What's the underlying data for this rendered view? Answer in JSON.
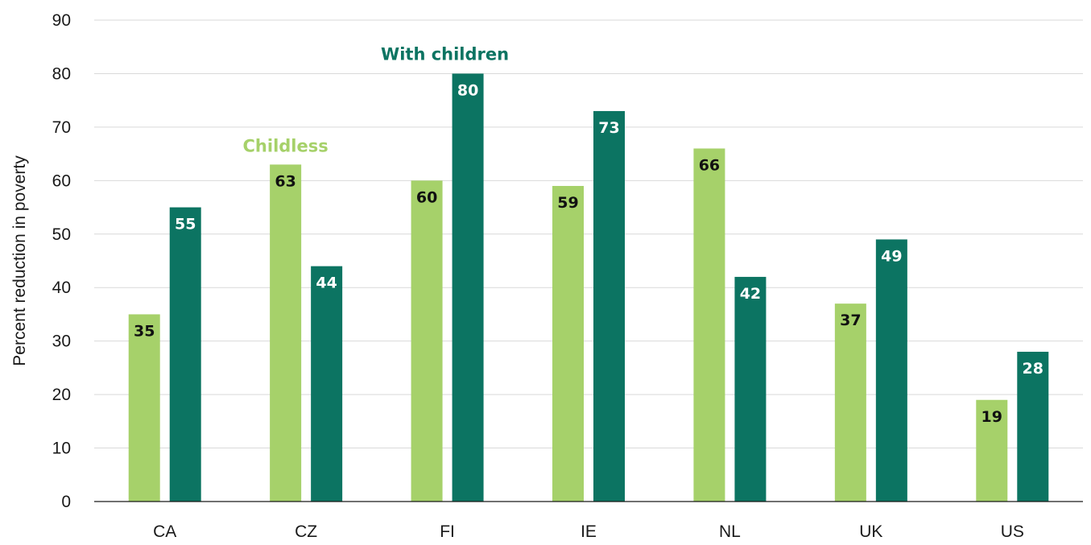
{
  "chart_data": {
    "type": "bar",
    "categories": [
      "CA",
      "CZ",
      "FI",
      "IE",
      "NL",
      "UK",
      "US"
    ],
    "series": [
      {
        "name": "Childless",
        "values": [
          35,
          63,
          60,
          59,
          66,
          37,
          19
        ],
        "color": "#a6d16a",
        "label_color": "#111111"
      },
      {
        "name": "With children",
        "values": [
          55,
          44,
          80,
          73,
          42,
          49,
          28
        ],
        "color": "#0c7462",
        "label_color": "#ffffff"
      }
    ],
    "ylabel": "Percent  reduction  in poverty",
    "ylim": [
      0,
      90
    ],
    "yticks": [
      0,
      10,
      20,
      30,
      40,
      50,
      60,
      70,
      80,
      90
    ],
    "grid": true,
    "legend": "direct labels above bars",
    "series_label_colors": [
      "#a6d16a",
      "#0c7462"
    ]
  }
}
